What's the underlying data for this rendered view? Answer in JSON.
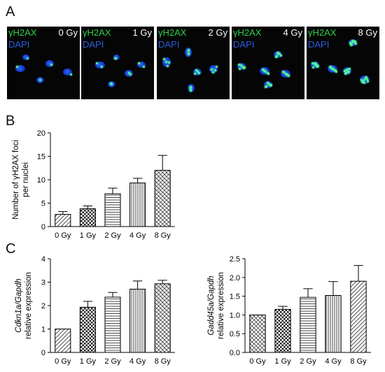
{
  "panels": {
    "a": "A",
    "b": "B",
    "c": "C"
  },
  "micrographs": [
    {
      "stain_green": "γH2AX",
      "stain_blue": "DAPI",
      "dose": "0 Gy",
      "foci_level": 0.1
    },
    {
      "stain_green": "γH2AX",
      "stain_blue": "DAPI",
      "dose": "1 Gy",
      "foci_level": 0.25
    },
    {
      "stain_green": "γH2AX",
      "stain_blue": "DAPI",
      "dose": "2 Gy",
      "foci_level": 0.45
    },
    {
      "stain_green": "γH2AX",
      "stain_blue": "DAPI",
      "dose": "4 Gy",
      "foci_level": 0.7
    },
    {
      "stain_green": "γH2AX",
      "stain_blue": "DAPI",
      "dose": "8 Gy",
      "foci_level": 1.0
    }
  ],
  "chart_data": [
    {
      "id": "foci",
      "type": "bar",
      "categories": [
        "0 Gy",
        "1 Gy",
        "2 Gy",
        "4 Gy",
        "8 Gy"
      ],
      "values": [
        2.6,
        3.8,
        7.0,
        9.3,
        12.0
      ],
      "errors": [
        0.6,
        0.6,
        1.2,
        1.0,
        3.2
      ],
      "ylabel_lines": [
        "Number of γH2AX foci",
        "per nuclei"
      ],
      "ylim": [
        0,
        20
      ],
      "yticks": [
        0,
        5,
        10,
        15,
        20
      ],
      "patterns": [
        "diag",
        "check",
        "hlines",
        "vlines",
        "cross"
      ]
    },
    {
      "id": "cdkn1a",
      "type": "bar",
      "categories": [
        "0 Gy",
        "1 Gy",
        "2 Gy",
        "4 Gy",
        "8 Gy"
      ],
      "values": [
        1.0,
        1.93,
        2.36,
        2.7,
        2.93
      ],
      "errors": [
        0.0,
        0.25,
        0.2,
        0.35,
        0.15
      ],
      "ylabel_lines": [
        "Cdkn1a/Gapdh",
        "relative expression"
      ],
      "ylim": [
        0,
        4
      ],
      "yticks": [
        0,
        1,
        2,
        3,
        4
      ],
      "patterns": [
        "diag",
        "check",
        "hlines",
        "vlines",
        "cross"
      ]
    },
    {
      "id": "gadd45a",
      "type": "bar",
      "categories": [
        "0 Gy",
        "1 Gy",
        "2 Gy",
        "4 Gy",
        "8 Gy"
      ],
      "values": [
        1.0,
        1.15,
        1.47,
        1.52,
        1.9
      ],
      "errors": [
        0.0,
        0.08,
        0.23,
        0.37,
        0.42
      ],
      "ylabel_lines": [
        "Gadd45a/Gapdh",
        "relative expression"
      ],
      "ylim": [
        0,
        2.5
      ],
      "yticks": [
        0.0,
        0.5,
        1.0,
        1.5,
        2.0,
        2.5
      ],
      "patterns": [
        "cross",
        "check",
        "hlines",
        "vlines",
        "diag"
      ]
    }
  ]
}
